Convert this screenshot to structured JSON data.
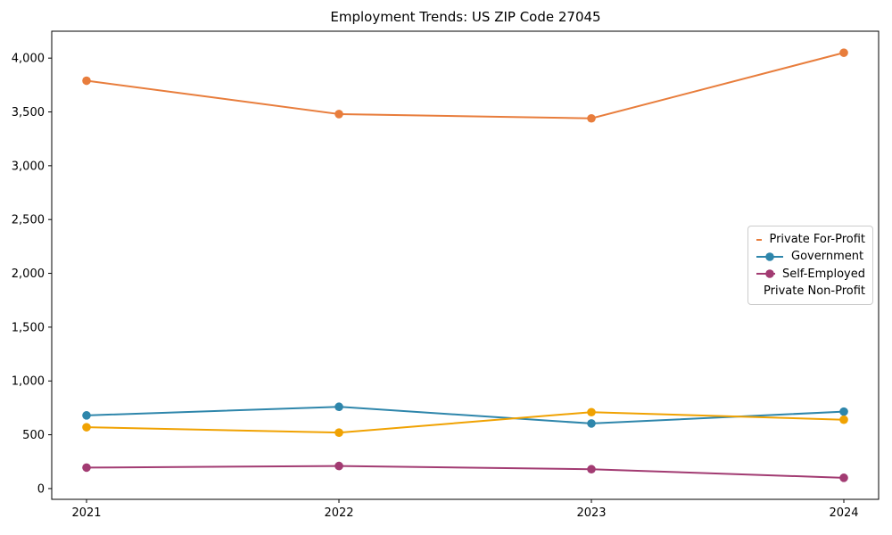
{
  "title": "Employment Trends: US ZIP Code 27045",
  "chart_data": {
    "type": "line",
    "title": "Employment Trends: US ZIP Code 27045",
    "xlabel": "",
    "ylabel": "",
    "categories": [
      "2021",
      "2022",
      "2023",
      "2024"
    ],
    "series": [
      {
        "name": "Private For-Profit",
        "color": "#E87D3C",
        "values": [
          3790,
          3480,
          3440,
          4050
        ]
      },
      {
        "name": "Government",
        "color": "#2E86AB",
        "values": [
          680,
          760,
          605,
          715
        ]
      },
      {
        "name": "Self-Employed",
        "color": "#A23B72",
        "values": [
          195,
          210,
          180,
          100
        ]
      },
      {
        "name": "Private Non-Profit",
        "color": "#F0A202",
        "values": [
          570,
          520,
          710,
          640
        ]
      }
    ],
    "ylim": [
      -100,
      4250
    ],
    "yticks": [
      0,
      500,
      1000,
      1500,
      2000,
      2500,
      3000,
      3500,
      4000
    ],
    "ytick_labels": [
      "0",
      "500",
      "1,000",
      "1,500",
      "2,000",
      "2,500",
      "3,000",
      "3,500",
      "4,000"
    ],
    "grid": false,
    "legend_position": "center right",
    "marker": "circle",
    "axis_color": "#000000"
  }
}
